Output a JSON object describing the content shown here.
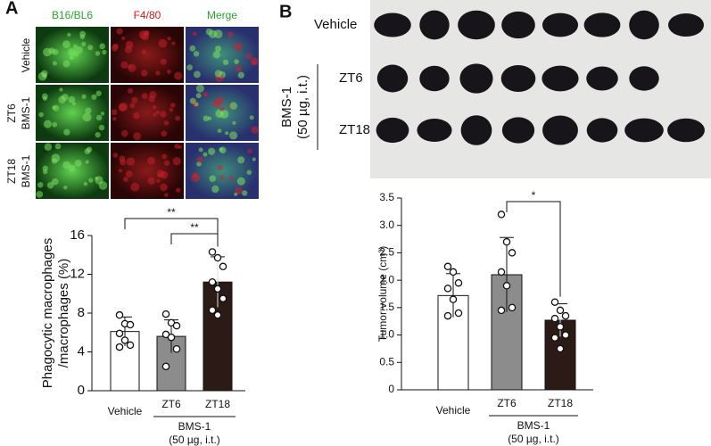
{
  "panel_a": {
    "letter": "A",
    "columns": [
      "B16/BL6",
      "F4/80",
      "Merge"
    ],
    "rows": [
      [
        "Vehicle"
      ],
      [
        "ZT6",
        "BMS-1"
      ],
      [
        "ZT18",
        "BMS-1"
      ]
    ]
  },
  "panel_b": {
    "letter": "B",
    "rows": [
      "Vehicle",
      "ZT6",
      "ZT18"
    ],
    "group": [
      "BMS-1",
      "(50 µg, i.t.)"
    ]
  },
  "chart_data": [
    {
      "type": "bar",
      "ylabel": [
        "Phagocytic macrophages",
        "/macrophages (%)"
      ],
      "categories": [
        "Vehicle",
        "ZT6",
        "ZT18"
      ],
      "values": [
        6.1,
        5.6,
        11.2
      ],
      "errors": [
        1.5,
        1.7,
        2.6
      ],
      "colors": [
        "#ffffff",
        "#8c8c8c",
        "#2b1a15"
      ],
      "points": [
        [
          7.8,
          6.9,
          6.8,
          5.9,
          5.2,
          4.7,
          4.5
        ],
        [
          7.9,
          7.0,
          6.7,
          5.8,
          5.5,
          4.3,
          2.5
        ],
        [
          14.3,
          13.7,
          12.8,
          11.2,
          10.5,
          9.5,
          8.3,
          7.8
        ]
      ],
      "ylim": [
        0,
        16
      ],
      "yticks": [
        0,
        4,
        8,
        12,
        16
      ],
      "group_label": [
        "BMS-1",
        "(50 µg, i.t.)"
      ],
      "significance": [
        {
          "from": 0,
          "to": 2,
          "label": "**"
        },
        {
          "from": 1,
          "to": 2,
          "label": "**"
        }
      ]
    },
    {
      "type": "bar",
      "ylabel": [
        "Tumor volume (cm³)"
      ],
      "categories": [
        "Vehicle",
        "ZT6",
        "ZT18"
      ],
      "values": [
        1.72,
        2.1,
        1.27
      ],
      "errors": [
        0.4,
        0.68,
        0.3
      ],
      "colors": [
        "#ffffff",
        "#8c8c8c",
        "#2b1a15"
      ],
      "points": [
        [
          2.25,
          2.15,
          1.95,
          1.85,
          1.65,
          1.4,
          1.35
        ],
        [
          3.2,
          2.7,
          2.5,
          2.15,
          1.9,
          1.5,
          1.45
        ],
        [
          1.6,
          1.45,
          1.35,
          1.3,
          1.15,
          1.0,
          0.95,
          0.75
        ]
      ],
      "ylim": [
        0,
        3.5
      ],
      "yticks": [
        0,
        0.5,
        {
          "value": 1,
          "label": "1.0"
        },
        1.5,
        {
          "value": 2,
          "label": "2.0"
        },
        2.5,
        {
          "value": 3,
          "label": "3.0"
        },
        3.5
      ],
      "group_label": [
        "BMS-1",
        "(50 µg, i.t.)"
      ],
      "significance": [
        {
          "from": 1,
          "to": 2,
          "label": "*"
        }
      ]
    }
  ]
}
